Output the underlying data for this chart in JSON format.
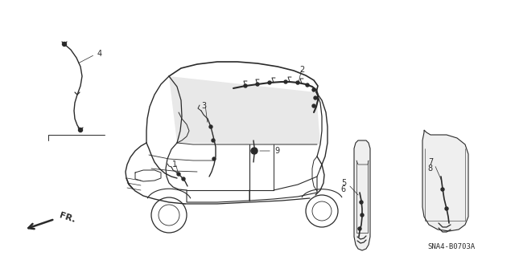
{
  "background_color": "#ffffff",
  "line_color": "#2a2a2a",
  "diagram_code": "SNA4-B0703A",
  "figsize": [
    6.4,
    3.19
  ],
  "dpi": 100,
  "xlim": [
    0,
    640
  ],
  "ylim": [
    0,
    319
  ]
}
